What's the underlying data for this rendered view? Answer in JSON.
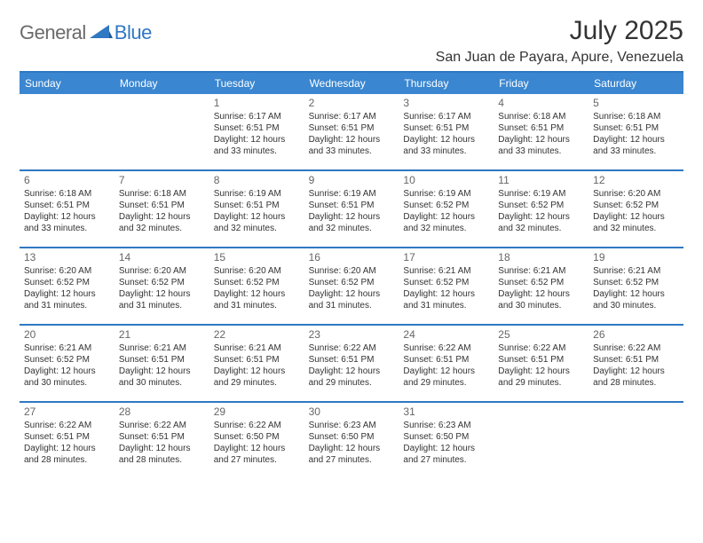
{
  "brand": {
    "part1": "General",
    "part2": "Blue"
  },
  "title": "July 2025",
  "location": "San Juan de Payara, Apure, Venezuela",
  "colors": {
    "header_bg": "#3a86d0",
    "divider": "#2f78c3",
    "text": "#333333",
    "daynum": "#666666",
    "logo_gray": "#6a6a6a",
    "logo_blue": "#2f78c3",
    "white": "#ffffff"
  },
  "weekdays": [
    "Sunday",
    "Monday",
    "Tuesday",
    "Wednesday",
    "Thursday",
    "Friday",
    "Saturday"
  ],
  "weeks": [
    [
      {
        "day": "",
        "sunrise": "",
        "sunset": "",
        "daylight": ""
      },
      {
        "day": "",
        "sunrise": "",
        "sunset": "",
        "daylight": ""
      },
      {
        "day": "1",
        "sunrise": "Sunrise: 6:17 AM",
        "sunset": "Sunset: 6:51 PM",
        "daylight": "Daylight: 12 hours and 33 minutes."
      },
      {
        "day": "2",
        "sunrise": "Sunrise: 6:17 AM",
        "sunset": "Sunset: 6:51 PM",
        "daylight": "Daylight: 12 hours and 33 minutes."
      },
      {
        "day": "3",
        "sunrise": "Sunrise: 6:17 AM",
        "sunset": "Sunset: 6:51 PM",
        "daylight": "Daylight: 12 hours and 33 minutes."
      },
      {
        "day": "4",
        "sunrise": "Sunrise: 6:18 AM",
        "sunset": "Sunset: 6:51 PM",
        "daylight": "Daylight: 12 hours and 33 minutes."
      },
      {
        "day": "5",
        "sunrise": "Sunrise: 6:18 AM",
        "sunset": "Sunset: 6:51 PM",
        "daylight": "Daylight: 12 hours and 33 minutes."
      }
    ],
    [
      {
        "day": "6",
        "sunrise": "Sunrise: 6:18 AM",
        "sunset": "Sunset: 6:51 PM",
        "daylight": "Daylight: 12 hours and 33 minutes."
      },
      {
        "day": "7",
        "sunrise": "Sunrise: 6:18 AM",
        "sunset": "Sunset: 6:51 PM",
        "daylight": "Daylight: 12 hours and 32 minutes."
      },
      {
        "day": "8",
        "sunrise": "Sunrise: 6:19 AM",
        "sunset": "Sunset: 6:51 PM",
        "daylight": "Daylight: 12 hours and 32 minutes."
      },
      {
        "day": "9",
        "sunrise": "Sunrise: 6:19 AM",
        "sunset": "Sunset: 6:51 PM",
        "daylight": "Daylight: 12 hours and 32 minutes."
      },
      {
        "day": "10",
        "sunrise": "Sunrise: 6:19 AM",
        "sunset": "Sunset: 6:52 PM",
        "daylight": "Daylight: 12 hours and 32 minutes."
      },
      {
        "day": "11",
        "sunrise": "Sunrise: 6:19 AM",
        "sunset": "Sunset: 6:52 PM",
        "daylight": "Daylight: 12 hours and 32 minutes."
      },
      {
        "day": "12",
        "sunrise": "Sunrise: 6:20 AM",
        "sunset": "Sunset: 6:52 PM",
        "daylight": "Daylight: 12 hours and 32 minutes."
      }
    ],
    [
      {
        "day": "13",
        "sunrise": "Sunrise: 6:20 AM",
        "sunset": "Sunset: 6:52 PM",
        "daylight": "Daylight: 12 hours and 31 minutes."
      },
      {
        "day": "14",
        "sunrise": "Sunrise: 6:20 AM",
        "sunset": "Sunset: 6:52 PM",
        "daylight": "Daylight: 12 hours and 31 minutes."
      },
      {
        "day": "15",
        "sunrise": "Sunrise: 6:20 AM",
        "sunset": "Sunset: 6:52 PM",
        "daylight": "Daylight: 12 hours and 31 minutes."
      },
      {
        "day": "16",
        "sunrise": "Sunrise: 6:20 AM",
        "sunset": "Sunset: 6:52 PM",
        "daylight": "Daylight: 12 hours and 31 minutes."
      },
      {
        "day": "17",
        "sunrise": "Sunrise: 6:21 AM",
        "sunset": "Sunset: 6:52 PM",
        "daylight": "Daylight: 12 hours and 31 minutes."
      },
      {
        "day": "18",
        "sunrise": "Sunrise: 6:21 AM",
        "sunset": "Sunset: 6:52 PM",
        "daylight": "Daylight: 12 hours and 30 minutes."
      },
      {
        "day": "19",
        "sunrise": "Sunrise: 6:21 AM",
        "sunset": "Sunset: 6:52 PM",
        "daylight": "Daylight: 12 hours and 30 minutes."
      }
    ],
    [
      {
        "day": "20",
        "sunrise": "Sunrise: 6:21 AM",
        "sunset": "Sunset: 6:52 PM",
        "daylight": "Daylight: 12 hours and 30 minutes."
      },
      {
        "day": "21",
        "sunrise": "Sunrise: 6:21 AM",
        "sunset": "Sunset: 6:51 PM",
        "daylight": "Daylight: 12 hours and 30 minutes."
      },
      {
        "day": "22",
        "sunrise": "Sunrise: 6:21 AM",
        "sunset": "Sunset: 6:51 PM",
        "daylight": "Daylight: 12 hours and 29 minutes."
      },
      {
        "day": "23",
        "sunrise": "Sunrise: 6:22 AM",
        "sunset": "Sunset: 6:51 PM",
        "daylight": "Daylight: 12 hours and 29 minutes."
      },
      {
        "day": "24",
        "sunrise": "Sunrise: 6:22 AM",
        "sunset": "Sunset: 6:51 PM",
        "daylight": "Daylight: 12 hours and 29 minutes."
      },
      {
        "day": "25",
        "sunrise": "Sunrise: 6:22 AM",
        "sunset": "Sunset: 6:51 PM",
        "daylight": "Daylight: 12 hours and 29 minutes."
      },
      {
        "day": "26",
        "sunrise": "Sunrise: 6:22 AM",
        "sunset": "Sunset: 6:51 PM",
        "daylight": "Daylight: 12 hours and 28 minutes."
      }
    ],
    [
      {
        "day": "27",
        "sunrise": "Sunrise: 6:22 AM",
        "sunset": "Sunset: 6:51 PM",
        "daylight": "Daylight: 12 hours and 28 minutes."
      },
      {
        "day": "28",
        "sunrise": "Sunrise: 6:22 AM",
        "sunset": "Sunset: 6:51 PM",
        "daylight": "Daylight: 12 hours and 28 minutes."
      },
      {
        "day": "29",
        "sunrise": "Sunrise: 6:22 AM",
        "sunset": "Sunset: 6:50 PM",
        "daylight": "Daylight: 12 hours and 27 minutes."
      },
      {
        "day": "30",
        "sunrise": "Sunrise: 6:23 AM",
        "sunset": "Sunset: 6:50 PM",
        "daylight": "Daylight: 12 hours and 27 minutes."
      },
      {
        "day": "31",
        "sunrise": "Sunrise: 6:23 AM",
        "sunset": "Sunset: 6:50 PM",
        "daylight": "Daylight: 12 hours and 27 minutes."
      },
      {
        "day": "",
        "sunrise": "",
        "sunset": "",
        "daylight": ""
      },
      {
        "day": "",
        "sunrise": "",
        "sunset": "",
        "daylight": ""
      }
    ]
  ]
}
